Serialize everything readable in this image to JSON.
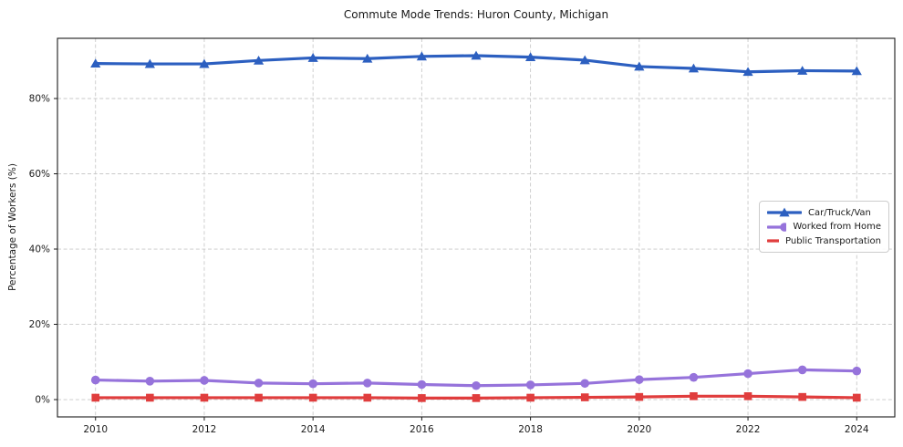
{
  "chart_data": {
    "type": "line",
    "title": "Commute Mode Trends: Huron County, Michigan",
    "xlabel": "",
    "ylabel": "Percentage of Workers (%)",
    "x": [
      2010,
      2011,
      2012,
      2013,
      2014,
      2015,
      2016,
      2017,
      2018,
      2019,
      2020,
      2021,
      2022,
      2023,
      2024
    ],
    "series": [
      {
        "name": "Car/Truck/Van",
        "color": "#2c5fc0",
        "marker": "triangle",
        "values": [
          89.3,
          89.2,
          89.2,
          90.1,
          90.8,
          90.6,
          91.2,
          91.4,
          91.0,
          90.2,
          88.5,
          88.0,
          87.1,
          87.4,
          87.3
        ]
      },
      {
        "name": "Worked from Home",
        "color": "#9673db",
        "marker": "circle",
        "values": [
          5.2,
          4.9,
          5.1,
          4.4,
          4.2,
          4.4,
          4.0,
          3.7,
          3.9,
          4.3,
          5.3,
          5.9,
          6.9,
          7.9,
          7.6
        ]
      },
      {
        "name": "Public Transportation",
        "color": "#e03d3d",
        "marker": "square",
        "values": [
          0.5,
          0.5,
          0.5,
          0.5,
          0.5,
          0.5,
          0.4,
          0.4,
          0.5,
          0.6,
          0.7,
          0.9,
          0.9,
          0.7,
          0.5
        ]
      }
    ],
    "xticks": [
      2010,
      2012,
      2014,
      2016,
      2018,
      2020,
      2022,
      2024
    ],
    "yticks": [
      0,
      20,
      40,
      60,
      80
    ],
    "ytick_suffix": "%",
    "xlim": [
      2009.3,
      2024.7
    ],
    "ylim": [
      -4.6,
      96.0
    ],
    "grid": true,
    "legend_position": "center-right"
  },
  "colors": {
    "grid": "#c9c9c9",
    "spine": "#1a1a1a",
    "tick_text": "#1a1a1a",
    "background": "#ffffff",
    "legend_border": "#cccccc"
  }
}
